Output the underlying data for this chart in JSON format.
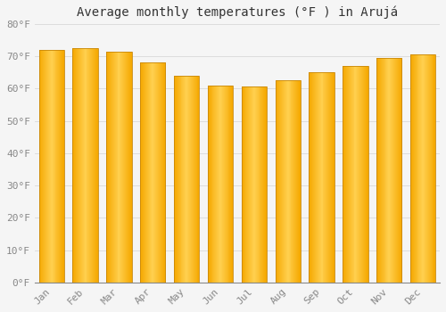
{
  "title": "Average monthly temperatures (°F ) in Arujá",
  "categories": [
    "Jan",
    "Feb",
    "Mar",
    "Apr",
    "May",
    "Jun",
    "Jul",
    "Aug",
    "Sep",
    "Oct",
    "Nov",
    "Dec"
  ],
  "values": [
    72,
    72.5,
    71.5,
    68,
    64,
    61,
    60.5,
    62.5,
    65,
    67,
    69.5,
    70.5
  ],
  "bar_color_edge": "#F5A800",
  "bar_color_center": "#FFD050",
  "bar_outline": "#C8880A",
  "ylim": [
    0,
    80
  ],
  "yticks": [
    0,
    10,
    20,
    30,
    40,
    50,
    60,
    70,
    80
  ],
  "ytick_labels": [
    "0°F",
    "10°F",
    "20°F",
    "30°F",
    "40°F",
    "50°F",
    "60°F",
    "70°F",
    "80°F"
  ],
  "background_color": "#F5F5F5",
  "plot_bg_color": "#F5F5F5",
  "grid_color": "#DDDDDD",
  "title_fontsize": 10,
  "tick_fontsize": 8,
  "font_family": "monospace",
  "tick_color": "#888888",
  "figsize": [
    5.0,
    3.5
  ],
  "dpi": 100
}
